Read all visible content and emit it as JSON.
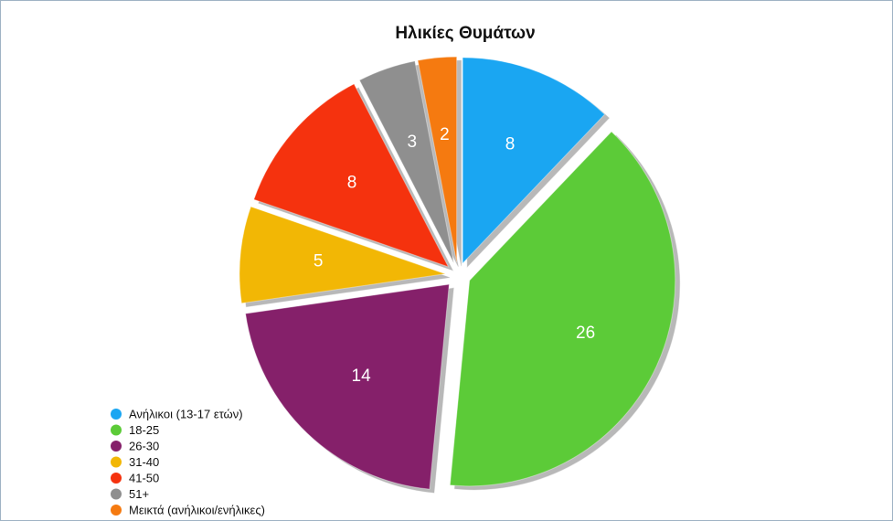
{
  "chart_data": {
    "type": "pie",
    "title": "Ηλικίες Θυμάτων",
    "categories": [
      "Ανήλικοι (13-17 ετών)",
      "18-25",
      "26-30",
      "31-40",
      "41-50",
      "51+",
      "Μεικτά (ανήλικοι/ενήλικες)"
    ],
    "values": [
      8,
      26,
      14,
      5,
      8,
      3,
      2
    ],
    "colors": [
      "#1aa6f2",
      "#5ccb38",
      "#85206a",
      "#f2b705",
      "#f5320e",
      "#8f8f8f",
      "#f57a10"
    ],
    "legend": "bottom-left"
  }
}
